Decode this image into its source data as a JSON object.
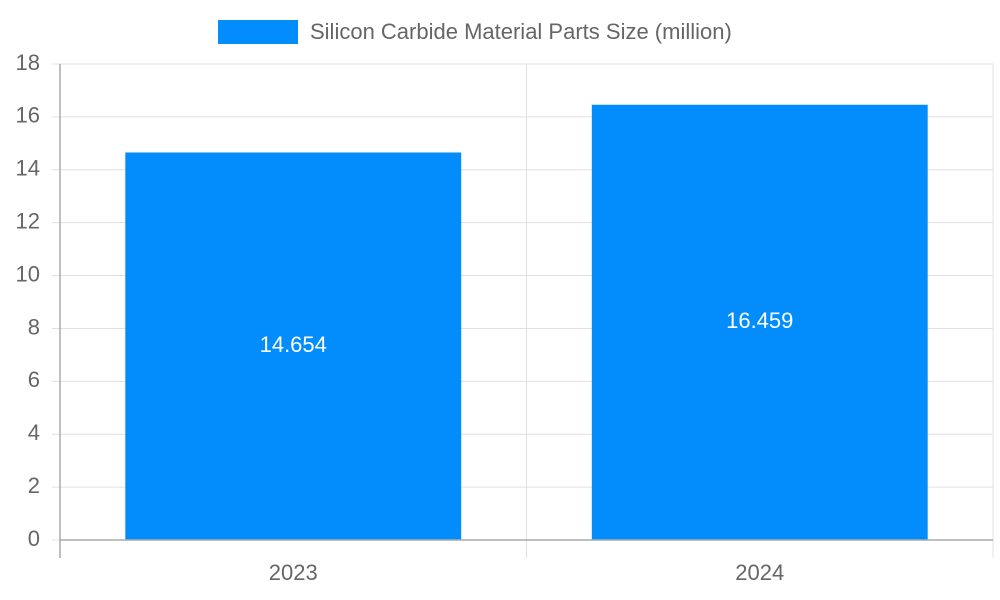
{
  "chart_data": {
    "type": "bar",
    "categories": [
      "2023",
      "2024"
    ],
    "series": [
      {
        "name": "Silicon Carbide Material Parts Size (million)",
        "color": "#038cfc",
        "values": [
          14.654,
          16.459
        ]
      }
    ],
    "ylim": [
      0,
      18
    ],
    "yticks": [
      0,
      2,
      4,
      6,
      8,
      10,
      12,
      14,
      16,
      18
    ],
    "grid": true,
    "legend": "top",
    "data_labels": true
  }
}
